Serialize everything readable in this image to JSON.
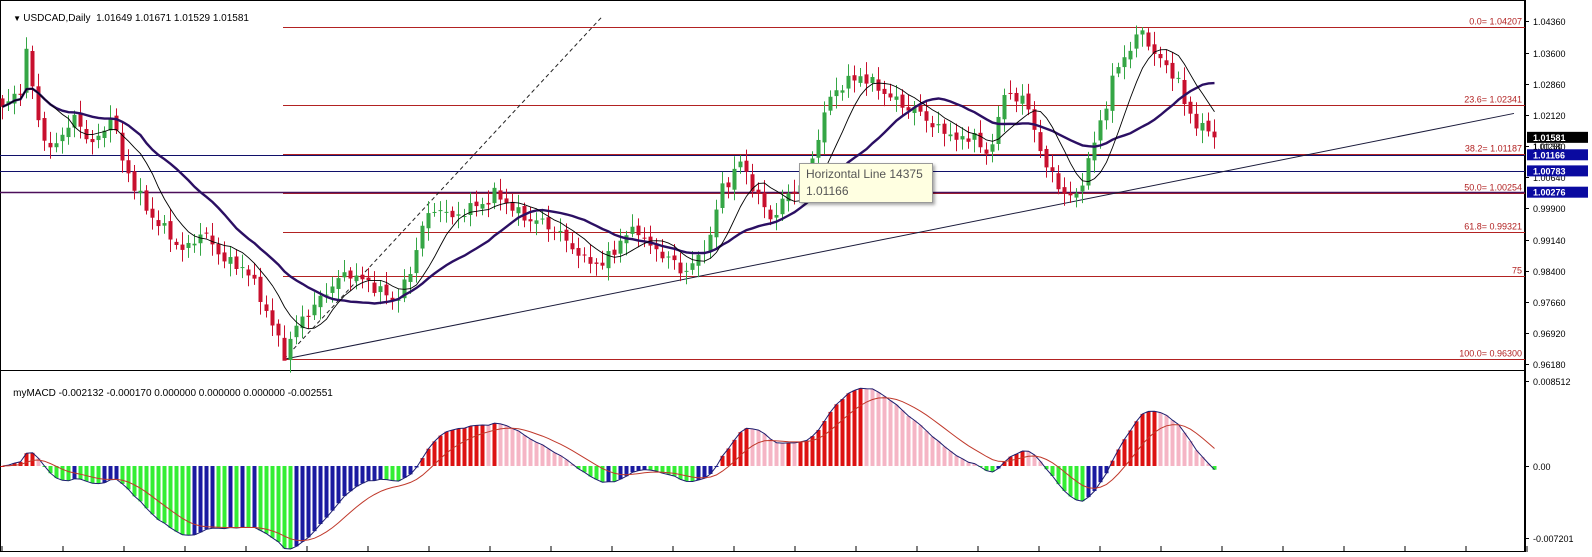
{
  "header": {
    "symbol": "USDCAD,Daily",
    "ohlc": "1.01649 1.01671 1.01529 1.01581",
    "indicator": "myMACD -0.002132 -0.000170 0.000000 0.000000 0.000000 -0.002551"
  },
  "tooltip": {
    "title": "Horizontal Line 14375",
    "value": "1.01166"
  },
  "colors": {
    "bull": "#35a645",
    "bear": "#c8102e",
    "ma_fast": "#000000",
    "ma_slow": "#2b0f63",
    "fib": "#b22222",
    "hline_blue": "#10106a",
    "hline_purple": "#4b0f5a",
    "macd_main": "#1e1e6e",
    "macd_signal": "#c0392b",
    "hist_red": "#dd1111",
    "hist_pink": "#f5b5c5",
    "hist_green": "#33ee33",
    "hist_blue": "#1a1aa0"
  },
  "chart_data": [
    {
      "type": "candlestick",
      "title": "USDCAD,Daily",
      "price_axis_ticks": [
        "1.04360",
        "1.03600",
        "1.02860",
        "1.02120",
        "1.01380",
        "1.00640",
        "0.99900",
        "0.99140",
        "0.98400",
        "0.97660",
        "0.96920",
        "0.96180"
      ],
      "ylim": [
        0.9614,
        1.0454
      ],
      "current_price": "1.01581",
      "axis_labels": [
        {
          "label": "1.01581",
          "value": 1.01581,
          "style": "black"
        },
        {
          "label": "1.01166",
          "value": 1.01166,
          "style": "blue"
        },
        {
          "label": "1.00783",
          "value": 1.00783,
          "style": "blue"
        },
        {
          "label": "1.00276",
          "value": 1.00276,
          "style": "blue"
        },
        {
          "label": "1.01250",
          "value": 1.0125,
          "style": "small"
        }
      ],
      "fibonacci": [
        {
          "label": "0.0= 1.04207",
          "value": 1.04207
        },
        {
          "label": "23.6= 1.02341",
          "value": 1.02341
        },
        {
          "label": "38.2= 1.01187",
          "value": 1.01187
        },
        {
          "label": "50.0= 1.00254",
          "value": 1.00254
        },
        {
          "label": "61.8= 0.99321",
          "value": 0.99321
        },
        {
          "label": "75",
          "value": 0.9828
        },
        {
          "label": "100.0= 0.96300",
          "value": 0.963
        }
      ],
      "horizontal_lines": [
        {
          "name": "Horizontal Line 14375",
          "value": 1.01166
        },
        {
          "value": 1.00783
        },
        {
          "value": 1.00276
        }
      ],
      "trendline": {
        "from": {
          "bar": 47,
          "price": 0.963
        },
        "to": {
          "bar": 252,
          "price": 1.0215
        }
      },
      "dashed_line": {
        "from": {
          "bar": 47,
          "price": 0.963
        },
        "to": {
          "bar": 100,
          "price": 1.0445
        }
      },
      "price_path": [
        [
          0,
          1.022
        ],
        [
          3,
          1.028
        ],
        [
          4,
          1.036
        ],
        [
          6,
          1.0195
        ],
        [
          8,
          1.012
        ],
        [
          10,
          1.0175
        ],
        [
          12,
          1.02
        ],
        [
          15,
          1.014
        ],
        [
          17,
          1.018
        ],
        [
          18,
          1.022
        ],
        [
          20,
          1.01
        ],
        [
          22,
          1.004
        ],
        [
          26,
          0.995
        ],
        [
          30,
          0.989
        ],
        [
          33,
          0.993
        ],
        [
          37,
          0.987
        ],
        [
          40,
          0.985
        ],
        [
          43,
          0.978
        ],
        [
          46,
          0.968
        ],
        [
          47,
          0.964
        ],
        [
          50,
          0.973
        ],
        [
          54,
          0.979
        ],
        [
          58,
          0.984
        ],
        [
          62,
          0.98
        ],
        [
          65,
          0.977
        ],
        [
          68,
          0.983
        ],
        [
          70,
          0.995
        ],
        [
          73,
          1.0
        ],
        [
          75,
          0.996
        ],
        [
          78,
          0.999
        ],
        [
          82,
          1.002
        ],
        [
          84,
          1.0
        ],
        [
          86,
          0.998
        ],
        [
          90,
          0.995
        ],
        [
          93,
          0.993
        ],
        [
          95,
          0.99
        ],
        [
          97,
          0.986
        ],
        [
          100,
          0.986
        ],
        [
          103,
          0.991
        ],
        [
          106,
          0.994
        ],
        [
          108,
          0.99
        ],
        [
          110,
          0.988
        ],
        [
          113,
          0.984
        ],
        [
          116,
          0.987
        ],
        [
          118,
          0.992
        ],
        [
          120,
          1.004
        ],
        [
          123,
          1.01
        ],
        [
          126,
          1.001
        ],
        [
          128,
          0.997
        ],
        [
          131,
          1.002
        ],
        [
          134,
          1.005
        ],
        [
          136,
          1.017
        ],
        [
          138,
          1.025
        ],
        [
          140,
          1.028
        ],
        [
          143,
          1.031
        ],
        [
          146,
          1.027
        ],
        [
          150,
          1.024
        ],
        [
          153,
          1.021
        ],
        [
          156,
          1.018
        ],
        [
          158,
          1.017
        ],
        [
          160,
          1.014
        ],
        [
          162,
          1.017
        ],
        [
          164,
          1.011
        ],
        [
          167,
          1.025
        ],
        [
          170,
          1.026
        ],
        [
          172,
          1.018
        ],
        [
          174,
          1.008
        ],
        [
          177,
          1.003
        ],
        [
          179,
          1.0015
        ],
        [
          182,
          1.014
        ],
        [
          185,
          1.03
        ],
        [
          188,
          1.037
        ],
        [
          190,
          1.041
        ],
        [
          193,
          1.034
        ],
        [
          196,
          1.029
        ],
        [
          197,
          1.0235
        ],
        [
          200,
          1.018
        ],
        [
          202,
          1.016
        ]
      ],
      "moving_averages": [
        "fast (thin black)",
        "slow (thick dark purple)"
      ]
    },
    {
      "type": "macd",
      "title": "myMACD",
      "values_label": "-0.002132 -0.000170 0.000000 0.000000 0.000000 -0.002551",
      "axis_ticks": [
        "0.008512",
        "0.00",
        "-0.007201"
      ],
      "ylim": [
        -0.0075,
        0.0088
      ]
    }
  ]
}
